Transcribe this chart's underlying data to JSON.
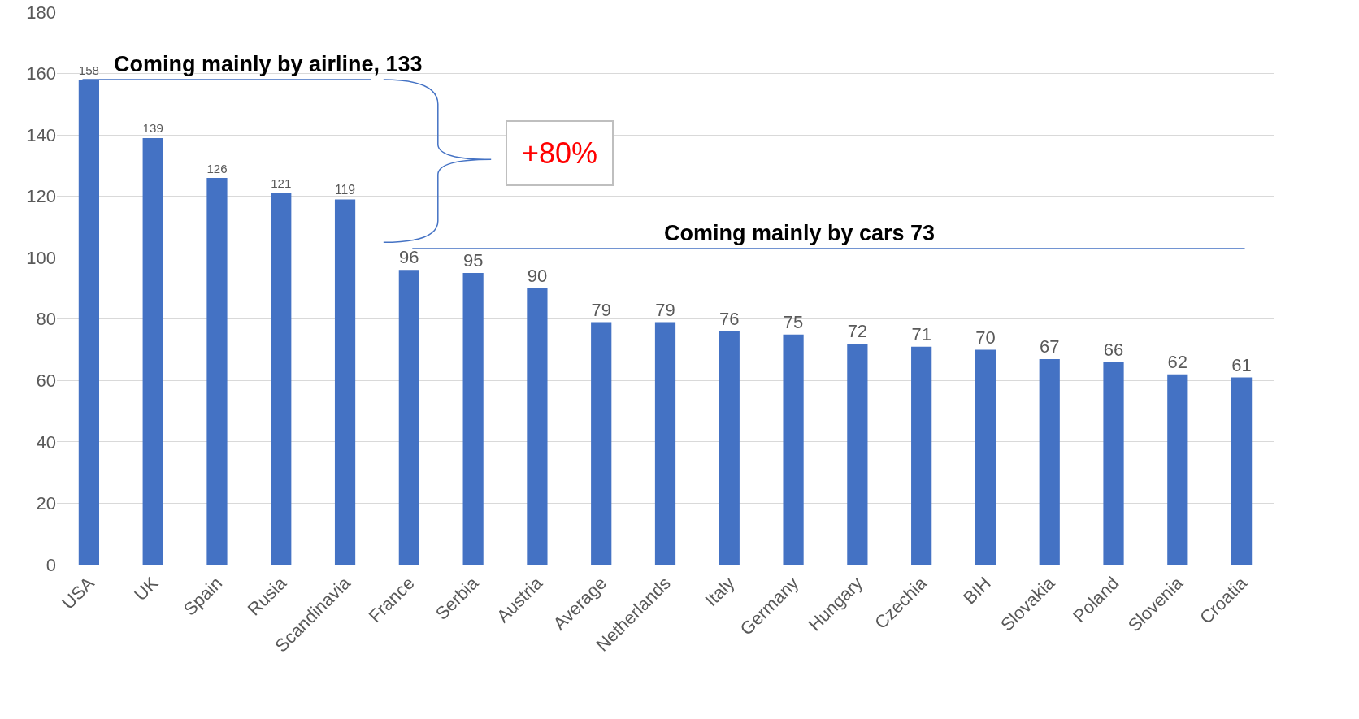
{
  "chart_data": {
    "type": "bar",
    "categories": [
      "USA",
      "UK",
      "Spain",
      "Rusia",
      "Scandinavia",
      "France",
      "Serbia",
      "Austria",
      "Average",
      "Netherlands",
      "Italy",
      "Germany",
      "Hungary",
      "Czechia",
      "BIH",
      "Slovakia",
      "Poland",
      "Slovenia",
      "Croatia"
    ],
    "values": [
      158,
      139,
      126,
      121,
      119,
      96,
      95,
      90,
      79,
      79,
      76,
      75,
      72,
      71,
      70,
      67,
      66,
      62,
      61
    ],
    "color": "#4472c4",
    "ylim": [
      0,
      180
    ],
    "yticks": [
      0,
      20,
      40,
      60,
      80,
      100,
      120,
      140,
      160,
      180
    ],
    "grid": "y",
    "data_labels": true,
    "annotations": [
      "Coming mainly by airline, 133",
      "Coming mainly by cars 73",
      "+80%"
    ]
  }
}
